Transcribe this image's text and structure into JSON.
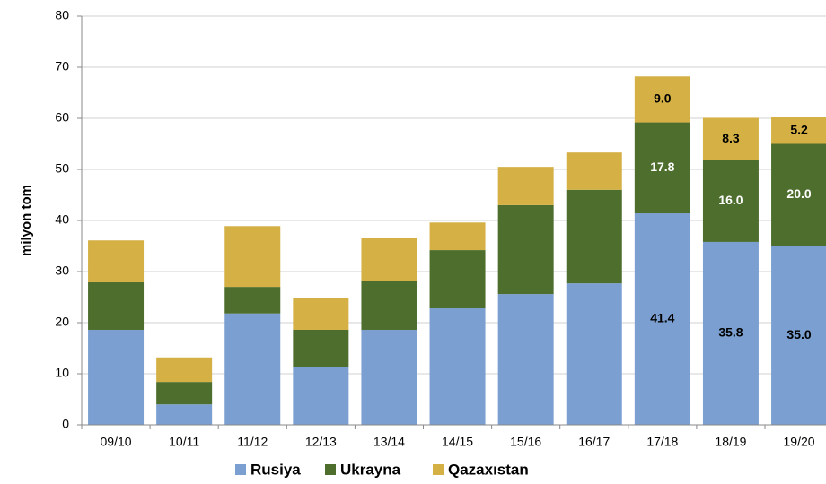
{
  "chart_data": {
    "type": "stacked_bar",
    "y_label": "milyon tom",
    "categories": [
      "09/10",
      "10/11",
      "11/12",
      "12/13",
      "13/14",
      "14/15",
      "15/16",
      "16/17",
      "17/18",
      "18/19",
      "19/20"
    ],
    "series": [
      {
        "name": "Rusiya",
        "color": "#7b9fd0",
        "label_color": "#000000",
        "values": [
          18.6,
          4.0,
          21.8,
          11.4,
          18.6,
          22.8,
          25.6,
          27.7,
          41.4,
          35.8,
          35.0
        ],
        "value_labels": [
          null,
          null,
          null,
          null,
          null,
          null,
          null,
          null,
          "41.4",
          "35.8",
          "35.0"
        ]
      },
      {
        "name": "Ukrayna",
        "color": "#4e6e2e",
        "label_color": "#ffffff",
        "values": [
          9.3,
          4.4,
          5.2,
          7.2,
          9.6,
          11.4,
          17.4,
          18.3,
          17.8,
          16.0,
          20.0
        ],
        "value_labels": [
          null,
          null,
          null,
          null,
          null,
          null,
          null,
          null,
          "17.8",
          "16.0",
          "20.0"
        ]
      },
      {
        "name": "Qazaxıstan",
        "color": "#d4b045",
        "label_color": "#000000",
        "values": [
          8.2,
          4.8,
          11.9,
          6.3,
          8.3,
          5.4,
          7.5,
          7.3,
          9.0,
          8.3,
          5.2
        ],
        "value_labels": [
          null,
          null,
          null,
          null,
          null,
          null,
          null,
          null,
          "9.0",
          "8.3",
          "5.2"
        ]
      }
    ],
    "ylim": [
      0,
      80
    ],
    "yticks": [
      0,
      10,
      20,
      30,
      40,
      50,
      60,
      70,
      80
    ],
    "grid": true
  }
}
